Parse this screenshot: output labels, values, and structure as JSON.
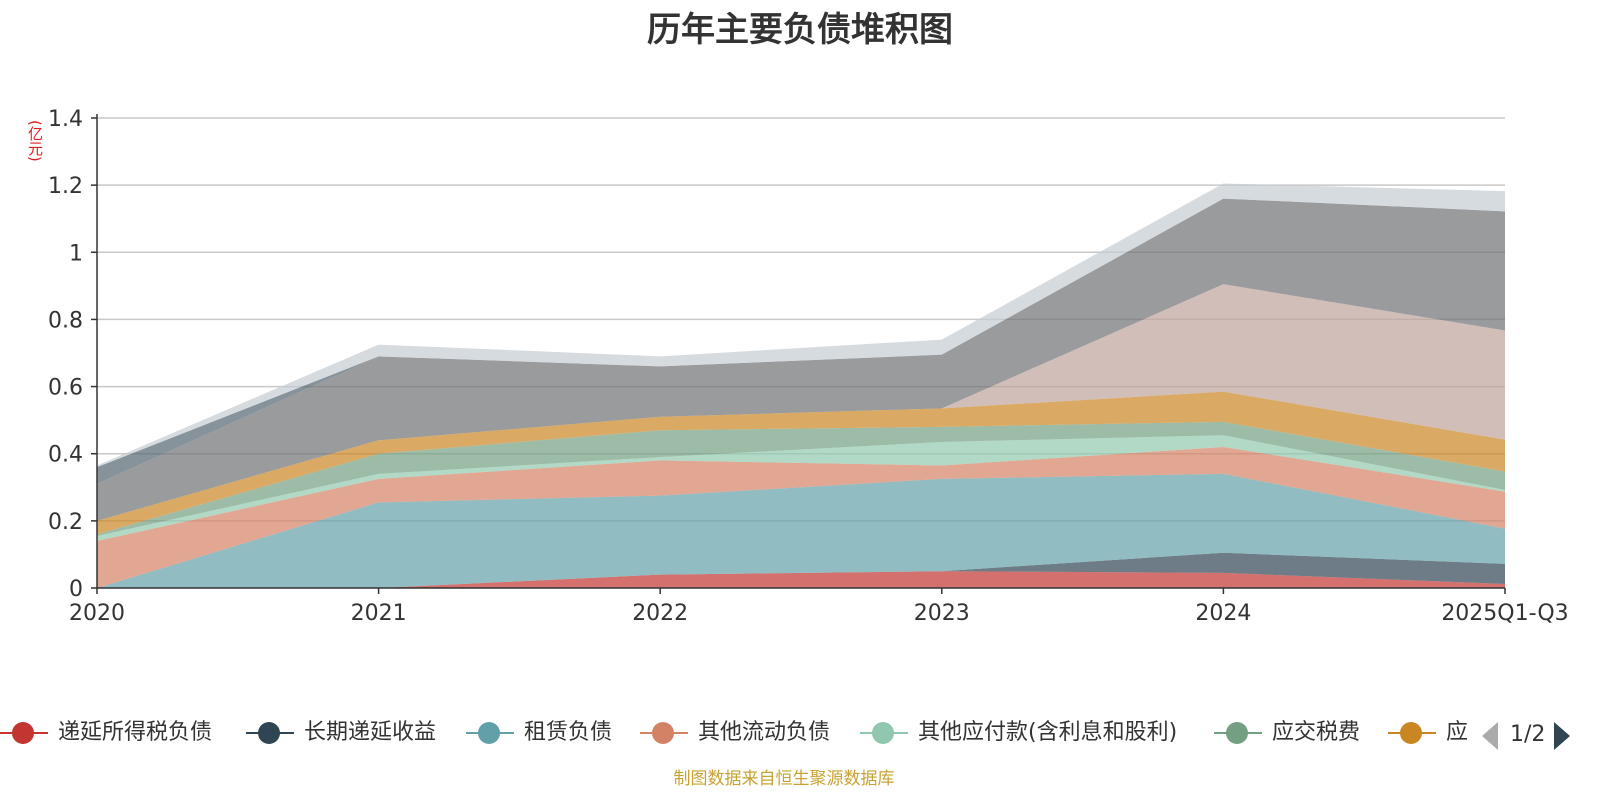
{
  "chart_data": {
    "type": "area",
    "title": "历年主要负债堆积图",
    "unit_label": "(亿元)",
    "x": [
      "2020",
      "2021",
      "2022",
      "2023",
      "2024",
      "2025Q1-Q3"
    ],
    "ylim": [
      0,
      1.4
    ],
    "yticks": [
      "0",
      "0.2",
      "0.4",
      "0.6",
      "0.8",
      "1",
      "1.2",
      "1.4"
    ],
    "grid": true,
    "stacked": true,
    "legend_position": "bottom",
    "legend_page": "1/2",
    "series": [
      {
        "name": "递延所得税负债",
        "color": "#c23531",
        "values": [
          0,
          0,
          0.04,
          0.05,
          0.045,
          0.012
        ]
      },
      {
        "name": "长期递延收益",
        "color": "#2f4554",
        "values": [
          0,
          0,
          0,
          0,
          0.06,
          0.06
        ]
      },
      {
        "name": "租赁负债",
        "color": "#61a0a8",
        "values": [
          0,
          0.255,
          0.235,
          0.275,
          0.235,
          0.105
        ]
      },
      {
        "name": "其他流动负债",
        "color": "#d48265",
        "values": [
          0.14,
          0.07,
          0.105,
          0.04,
          0.08,
          0.11
        ]
      },
      {
        "name": "其他应付款(含利息和股利)",
        "color": "#91c7ae",
        "values": [
          0.015,
          0.015,
          0.01,
          0.07,
          0.035,
          0.005
        ]
      },
      {
        "name": "应交税费",
        "color": "#749f83",
        "values": [
          0.005,
          0.06,
          0.08,
          0.045,
          0.04,
          0.055
        ]
      },
      {
        "name": "应付职工薪酬",
        "color": "#ca8622",
        "values": [
          0.04,
          0.04,
          0.04,
          0.055,
          0.09,
          0.095
        ]
      },
      {
        "name": "",
        "color": "#bda29a",
        "values": [
          0,
          0,
          0,
          0,
          0.32,
          0.325
        ]
      },
      {
        "name": "",
        "color": "#6e7074",
        "values": [
          0.11,
          0.25,
          0.15,
          0.16,
          0.255,
          0.355
        ]
      },
      {
        "name": "",
        "color": "#546570",
        "values": [
          0.05,
          0,
          0,
          0,
          0,
          0
        ]
      },
      {
        "name": "",
        "color": "#c4ccd3",
        "values": [
          0.005,
          0.035,
          0.03,
          0.045,
          0.045,
          0.06
        ]
      }
    ],
    "legend_visible": [
      "递延所得税负债",
      "长期递延收益",
      "租赁负债",
      "其他流动负债",
      "其他应付款(含利息和股利)",
      "应交税费",
      "应"
    ]
  },
  "footer": {
    "source": "制图数据来自恒生聚源数据库"
  }
}
